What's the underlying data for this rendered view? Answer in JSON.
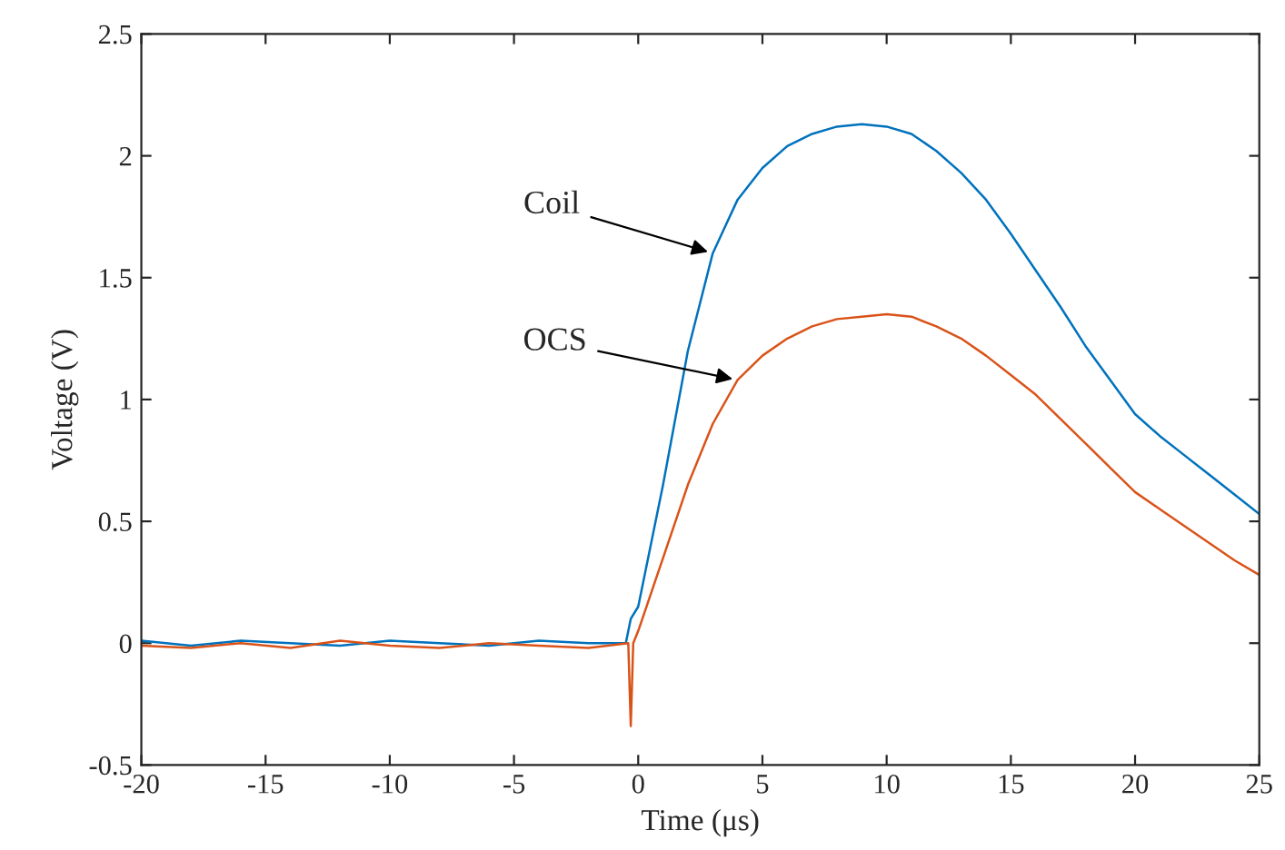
{
  "chart_data": {
    "type": "line",
    "xlabel": "Time (μs)",
    "ylabel": "Voltage (V)",
    "xlim": [
      -20,
      25
    ],
    "xticks": [
      -20,
      -15,
      -10,
      -5,
      0,
      5,
      10,
      15,
      20,
      25
    ],
    "ylim": [
      -0.5,
      2.5
    ],
    "yticks": [
      -0.5,
      0,
      0.5,
      1,
      1.5,
      2,
      2.5
    ],
    "grid": false,
    "legend": false,
    "marker": "none",
    "line_style": "solid",
    "series": [
      {
        "color": "#0072bd",
        "x": [
          -20,
          -18,
          -16,
          -14,
          -12,
          -10,
          -8,
          -6,
          -4,
          -2,
          -0.5,
          -0.3,
          0,
          1,
          2,
          3,
          4,
          5,
          6,
          7,
          8,
          9,
          10,
          11,
          12,
          13,
          14,
          15,
          16,
          17,
          18,
          19,
          20,
          21,
          22,
          23,
          24,
          25
        ],
        "values": [
          0.01,
          -0.01,
          0.01,
          0,
          -0.01,
          0.01,
          0,
          -0.01,
          0.01,
          0,
          0,
          0.1,
          0.15,
          0.65,
          1.2,
          1.6,
          1.82,
          1.95,
          2.04,
          2.09,
          2.12,
          2.13,
          2.12,
          2.09,
          2.02,
          1.93,
          1.82,
          1.68,
          1.53,
          1.38,
          1.22,
          1.08,
          0.94,
          0.85,
          0.77,
          0.69,
          0.61,
          0.53
        ]
      },
      {
        "color": "#d95319",
        "x": [
          -20,
          -18,
          -16,
          -14,
          -12,
          -10,
          -8,
          -6,
          -4,
          -2,
          -0.4,
          -0.3,
          -0.2,
          0,
          1,
          2,
          3,
          4,
          5,
          6,
          7,
          8,
          9,
          10,
          11,
          12,
          13,
          14,
          15,
          16,
          17,
          18,
          19,
          20,
          21,
          22,
          23,
          24,
          25
        ],
        "values": [
          -0.01,
          -0.02,
          0,
          -0.02,
          0.01,
          -0.01,
          -0.02,
          0,
          -0.01,
          -0.02,
          0,
          -0.34,
          0,
          0.05,
          0.35,
          0.65,
          0.9,
          1.08,
          1.18,
          1.25,
          1.3,
          1.33,
          1.34,
          1.35,
          1.34,
          1.3,
          1.25,
          1.18,
          1.1,
          1.02,
          0.92,
          0.82,
          0.72,
          0.62,
          0.55,
          0.48,
          0.41,
          0.34,
          0.28
        ]
      }
    ],
    "annotations": [
      {
        "text": "Coil",
        "x": 3,
        "y": 1.6
      },
      {
        "text": "OCS",
        "x": 4,
        "y": 1.08
      }
    ]
  }
}
